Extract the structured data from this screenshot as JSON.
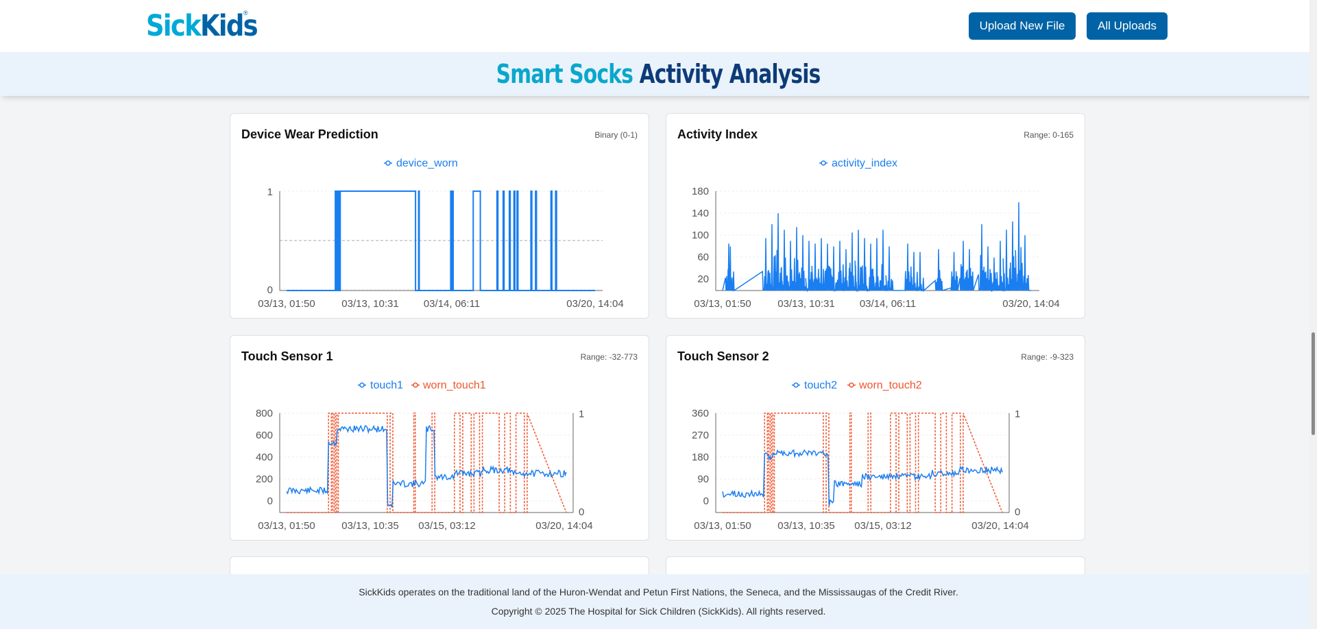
{
  "header": {
    "logo": {
      "part1": "Sick",
      "part2": "Kids",
      "mark": "®",
      "colors": {
        "sick": "#00a9d8",
        "kids": "#0063a6"
      }
    },
    "buttons": {
      "upload": "Upload New File",
      "all_uploads": "All Uploads"
    },
    "button_color": "#0163a5"
  },
  "page": {
    "title_part1": "Smart Socks",
    "title_part2": "Activity Analysis"
  },
  "cards": [
    {
      "title": "Device Wear Prediction",
      "range": "Binary (0-1)"
    },
    {
      "title": "Activity Index",
      "range": "Range: 0-165"
    },
    {
      "title": "Touch Sensor 1",
      "range": "Range: -32-773"
    },
    {
      "title": "Touch Sensor 2",
      "range": "Range: -9-323"
    }
  ],
  "colors": {
    "blue": "#1a7ef0",
    "red": "#f1542d"
  },
  "chart_data": [
    {
      "type": "line",
      "series": [
        {
          "name": "device_worn",
          "color": "#1a7ef0",
          "segments": [
            [
              0.0,
              0
            ],
            [
              0.155,
              0
            ],
            [
              0.158,
              1
            ],
            [
              0.162,
              0
            ],
            [
              0.165,
              1
            ],
            [
              0.168,
              0
            ],
            [
              0.17,
              1
            ],
            [
              0.172,
              0
            ],
            [
              0.174,
              1
            ],
            [
              0.415,
              1
            ],
            [
              0.418,
              0
            ],
            [
              0.425,
              0
            ],
            [
              0.428,
              1
            ],
            [
              0.43,
              0
            ],
            [
              0.53,
              0
            ],
            [
              0.532,
              1
            ],
            [
              0.535,
              0
            ],
            [
              0.538,
              1
            ],
            [
              0.54,
              0
            ],
            [
              0.602,
              0
            ],
            [
              0.605,
              1
            ],
            [
              0.625,
              1
            ],
            [
              0.628,
              0
            ],
            [
              0.68,
              0
            ],
            [
              0.682,
              1
            ],
            [
              0.685,
              0
            ],
            [
              0.7,
              0
            ],
            [
              0.702,
              1
            ],
            [
              0.705,
              0
            ],
            [
              0.72,
              0
            ],
            [
              0.722,
              1
            ],
            [
              0.725,
              0
            ],
            [
              0.735,
              0
            ],
            [
              0.737,
              1
            ],
            [
              0.74,
              0
            ],
            [
              0.745,
              0
            ],
            [
              0.747,
              1
            ],
            [
              0.75,
              0
            ],
            [
              0.79,
              0
            ],
            [
              0.792,
              1
            ],
            [
              0.795,
              0
            ],
            [
              0.805,
              0
            ],
            [
              0.807,
              1
            ],
            [
              0.81,
              0
            ],
            [
              0.855,
              0
            ],
            [
              0.857,
              1
            ],
            [
              0.86,
              0
            ],
            [
              0.87,
              0
            ],
            [
              0.872,
              1
            ],
            [
              0.875,
              0
            ],
            [
              1.0,
              0
            ]
          ]
        }
      ],
      "y_ticks": [
        "0",
        "1"
      ],
      "x_ticks": [
        "03/13, 01:50",
        "03/13, 10:31",
        "03/14, 06:11",
        "03/20, 14:04"
      ],
      "reference_line": 0.5
    },
    {
      "type": "line",
      "series": [
        {
          "name": "activity_index",
          "color": "#1a7ef0",
          "peaks": [
            [
              0.02,
              85
            ],
            [
              0.025,
              80
            ],
            [
              0.14,
              95
            ],
            [
              0.16,
              120
            ],
            [
              0.18,
              140
            ],
            [
              0.2,
              110
            ],
            [
              0.22,
              90
            ],
            [
              0.24,
              115
            ],
            [
              0.26,
              100
            ],
            [
              0.28,
              90
            ],
            [
              0.3,
              85
            ],
            [
              0.32,
              95
            ],
            [
              0.34,
              85
            ],
            [
              0.36,
              80
            ],
            [
              0.38,
              90
            ],
            [
              0.4,
              75
            ],
            [
              0.42,
              105
            ],
            [
              0.44,
              110
            ],
            [
              0.46,
              95
            ],
            [
              0.48,
              85
            ],
            [
              0.5,
              95
            ],
            [
              0.52,
              110
            ],
            [
              0.54,
              80
            ],
            [
              0.6,
              85
            ],
            [
              0.62,
              70
            ],
            [
              0.64,
              70
            ],
            [
              0.7,
              75
            ],
            [
              0.75,
              70
            ],
            [
              0.78,
              90
            ],
            [
              0.8,
              75
            ],
            [
              0.84,
              120
            ],
            [
              0.86,
              80
            ],
            [
              0.88,
              60
            ],
            [
              0.9,
              90
            ],
            [
              0.92,
              110
            ],
            [
              0.94,
              125
            ],
            [
              0.96,
              160
            ],
            [
              0.98,
              100
            ]
          ]
        }
      ],
      "y_ticks": [
        "20",
        "60",
        "100",
        "140",
        "180"
      ],
      "x_ticks": [
        "03/13, 01:50",
        "03/13, 10:31",
        "03/14, 06:11",
        "03/20, 14:04"
      ]
    },
    {
      "type": "line",
      "series": [
        {
          "name": "touch1",
          "color": "#1a7ef0"
        },
        {
          "name": "worn_touch1",
          "color": "#f1542d"
        }
      ],
      "y_ticks": [
        "0",
        "200",
        "400",
        "600",
        "800"
      ],
      "y2_ticks": [
        "0",
        "1"
      ],
      "x_ticks": [
        "03/13, 01:50",
        "03/13, 10:35",
        "03/15, 03:12",
        "03/20, 14:04"
      ]
    },
    {
      "type": "line",
      "series": [
        {
          "name": "touch2",
          "color": "#1a7ef0"
        },
        {
          "name": "worn_touch2",
          "color": "#f1542d"
        }
      ],
      "y_ticks": [
        "0",
        "90",
        "180",
        "270",
        "360"
      ],
      "y2_ticks": [
        "0",
        "1"
      ],
      "x_ticks": [
        "03/13, 01:50",
        "03/13, 10:35",
        "03/15, 03:12",
        "03/20, 14:04"
      ]
    }
  ],
  "footer": {
    "land": "SickKids operates on the traditional land of the Huron-Wendat and Petun First Nations, the Seneca, and the Mississaugas of the Credit River.",
    "copyright": "Copyright © 2025 The Hospital for Sick Children (SickKids). All rights reserved."
  }
}
